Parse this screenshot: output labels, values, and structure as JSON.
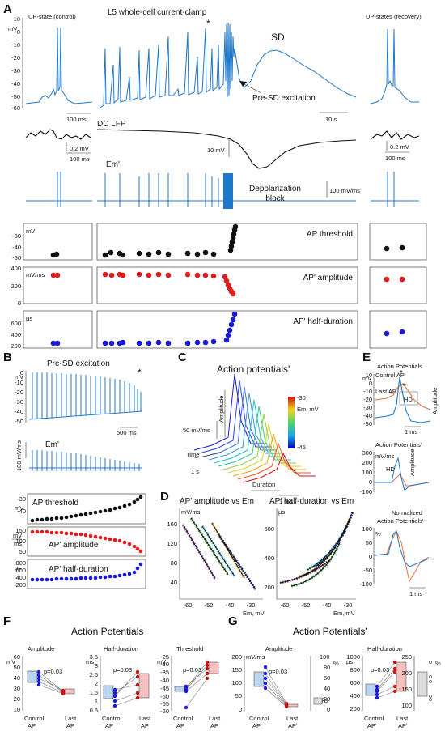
{
  "panels": {
    "A": "A",
    "B": "B",
    "C": "C",
    "D": "D",
    "E": "E",
    "F": "F",
    "G": "G"
  },
  "panelA": {
    "up_control": "UP-state (control)",
    "clamp_title": "L5 whole-cell current-clamp",
    "up_recovery": "UP-states (recovery)",
    "sd": "SD",
    "pre_sd": "Pre-SD excitation",
    "mv": "mV",
    "y_ticks": [
      "10",
      "0",
      "-10",
      "-20",
      "-30",
      "-40",
      "-50",
      "-60"
    ],
    "scale_100ms": "100 ms",
    "scale_10s": "10 s",
    "dc_lfp": "DC LFP",
    "scale_02mv": "0.2 mV",
    "scale_100ms_b": "100 ms",
    "scale_10mv": "10 mV",
    "scale_02mv_r": "0.2 mV",
    "scale_100ms_r": "100 ms",
    "em_prime": "Em'",
    "depol_1": "Depolarization",
    "depol_2": "block",
    "scale_100mvms": "100 mV/ms",
    "threshold_label": "AP threshold",
    "thr_unit": "mV",
    "thr_ticks": [
      "-30",
      "-40",
      "-50"
    ],
    "amp_label": "AP' amplitude",
    "amp_unit": "mV/ms",
    "amp_ticks": [
      "400",
      "200",
      "0"
    ],
    "hd_label": "AP' half-duration",
    "hd_unit": "µs",
    "hd_ticks": [
      "600",
      "400",
      "200"
    ],
    "asterisk": "*"
  },
  "panelB": {
    "title": "Pre-SD excitation",
    "mv": "mV",
    "y_ticks": [
      "0",
      "-10",
      "-20",
      "-30",
      "-40",
      "-50"
    ],
    "scale_500ms": "500 ms",
    "em_prime": "Em'",
    "scale_100mvms": "100 mV/ms",
    "thr_label": "AP threshold",
    "thr_unit": "mV",
    "thr_ticks": [
      "-30",
      "-40"
    ],
    "amp_label": "AP' amplitude",
    "amp_unit_top": "mV",
    "amp_unit_bot": "ms",
    "amp_ticks": [
      "150",
      "100",
      "50"
    ],
    "hd_label": "AP' half-duration",
    "hd_unit": "µs",
    "hd_ticks": [
      "800",
      "600",
      "400",
      "200"
    ],
    "asterisk": "*"
  },
  "panelC": {
    "title": "Action potentials'",
    "amplitude": "Amplitude",
    "scale_50": "50 mV/ms",
    "time": "Time",
    "s1": "1 s",
    "duration": "Duration",
    "ms1": "1 ms",
    "cb_top": "-30",
    "cb_mid": "Em, mV",
    "cb_bot": "-45"
  },
  "panelD": {
    "left_title": "AP' amplitude vs Em",
    "right_title": "AP' half-duration vs Em",
    "left_unit": "mV/ms",
    "right_unit": "µs",
    "left_y": [
      "160",
      "120",
      "80",
      "40"
    ],
    "right_y": [
      "600",
      "400",
      "200"
    ],
    "x_ticks": [
      "-60",
      "-50",
      "-40",
      "-30"
    ],
    "x_label": "Em, mV"
  },
  "panelE": {
    "title1": "Action Potentials",
    "control_ap": "Control AP",
    "last_ap": "Last AP",
    "mv": "mV",
    "y_ticks": [
      "10",
      "0",
      "-10",
      "-20",
      "-30",
      "-40",
      "-50"
    ],
    "hd": "HD",
    "amplitude": "Amplitude",
    "ms1": "1 ms",
    "title2": "Action Potentials'",
    "unit2": "mV/ms",
    "y2": [
      "300",
      "200",
      "100",
      "0",
      "-100"
    ],
    "hd2": "HD",
    "amplitude2": "Amplitude",
    "title3a": "Normalized",
    "title3b": "Action Potentials'",
    "pct": "%",
    "y3": [
      "100",
      "50",
      "0",
      "-50",
      "-100"
    ],
    "ms1b": "1 ms"
  },
  "panelF": {
    "title": "Action Potentials",
    "amp_title": "Amplitude",
    "amp_unit": "mV",
    "amp_y": [
      "60",
      "50",
      "40",
      "30",
      "20",
      "10"
    ],
    "hd_title": "Half-duration",
    "hd_unit": "ms",
    "hd_y": [
      "3.5",
      "3",
      "2.5",
      "2",
      "1.5",
      "1",
      "0.5"
    ],
    "thr_title": "Threshold",
    "thr_unit": "mV",
    "thr_y": [
      "-25",
      "-30",
      "-35",
      "-40",
      "-45",
      "-50",
      "-55",
      "-60"
    ],
    "p": "p=0.03",
    "control": "Control",
    "ap": "AP",
    "last": "Last",
    "ap2": "AP"
  },
  "panelG": {
    "title": "Action Potentials'",
    "amp_title": "Amplitude",
    "amp_unit": "mV/ms",
    "amp_y": [
      "200",
      "150",
      "100",
      "50",
      "0"
    ],
    "pct_y": [
      "100",
      "80",
      "60",
      "40",
      "20",
      "0"
    ],
    "pct": "%",
    "hd_title": "Half-duration",
    "hd_unit": "µs",
    "hd_y": [
      "1000",
      "800",
      "600",
      "400",
      "200"
    ],
    "pct2_y": [
      "250",
      "200",
      "150",
      "100"
    ],
    "pct2": "%",
    "p": "p=0.03",
    "control": "Control",
    "ap": "AP'",
    "last": "Last",
    "ap2": "AP'"
  },
  "colors": {
    "blue": "#1f77c9",
    "orange": "#e8703a",
    "black": "#111111",
    "red": "#e31b1b",
    "navy": "#1a1ad6"
  }
}
